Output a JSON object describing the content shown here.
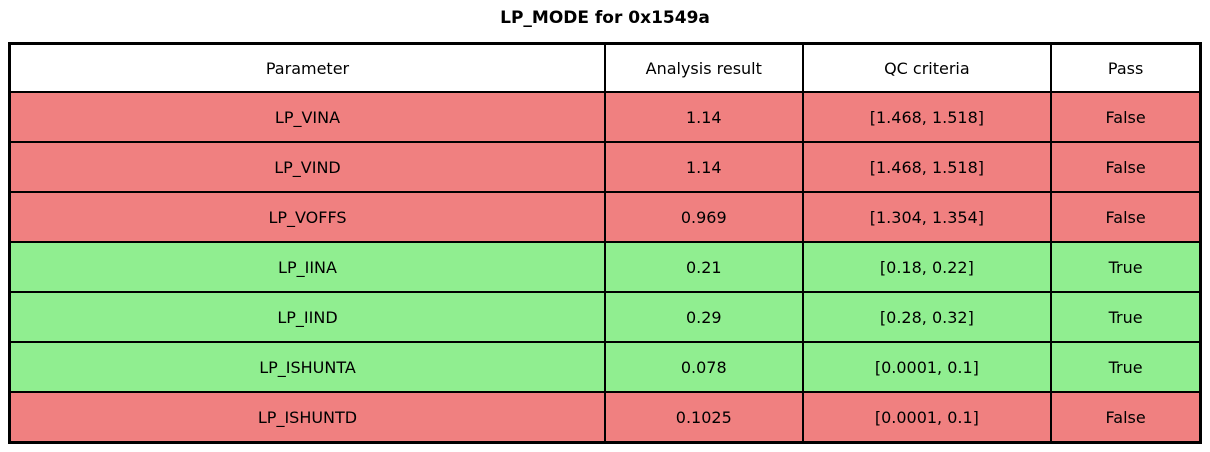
{
  "title": "LP_MODE for 0x1549a",
  "colors": {
    "pass": "#90EE90",
    "fail": "#F08080",
    "header_bg": "#FFFFFF",
    "border": "#000000"
  },
  "chart_data": {
    "type": "table",
    "title": "LP_MODE for 0x1549a",
    "columns": [
      "Parameter",
      "Analysis result",
      "QC criteria",
      "Pass"
    ],
    "rows": [
      {
        "parameter": "LP_VINA",
        "result": "1.14",
        "criteria": "[1.468, 1.518]",
        "pass": "False"
      },
      {
        "parameter": "LP_VIND",
        "result": "1.14",
        "criteria": "[1.468, 1.518]",
        "pass": "False"
      },
      {
        "parameter": "LP_VOFFS",
        "result": "0.969",
        "criteria": "[1.304, 1.354]",
        "pass": "False"
      },
      {
        "parameter": "LP_IINA",
        "result": "0.21",
        "criteria": "[0.18, 0.22]",
        "pass": "True"
      },
      {
        "parameter": "LP_IIND",
        "result": "0.29",
        "criteria": "[0.28, 0.32]",
        "pass": "True"
      },
      {
        "parameter": "LP_ISHUNTA",
        "result": "0.078",
        "criteria": "[0.0001, 0.1]",
        "pass": "True"
      },
      {
        "parameter": "LP_ISHUNTD",
        "result": "0.1025",
        "criteria": "[0.0001, 0.1]",
        "pass": "False"
      }
    ]
  }
}
